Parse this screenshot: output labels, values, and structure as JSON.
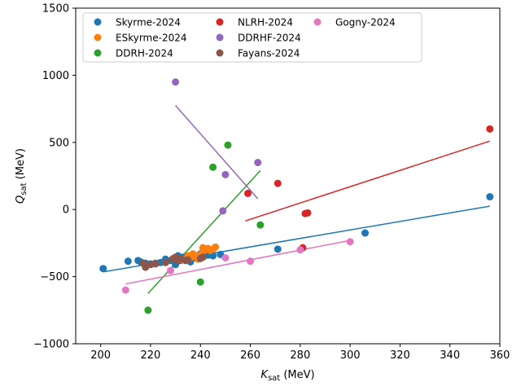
{
  "chart_data": {
    "type": "scatter",
    "xlabel": "K_sat (MeV)",
    "ylabel": "Q_sat (MeV)",
    "xlim": [
      190,
      360
    ],
    "ylim": [
      -1000,
      1500
    ],
    "xticks": [
      "200",
      "220",
      "240",
      "260",
      "280",
      "300",
      "320",
      "340",
      "360"
    ],
    "yticks": [
      "−1000",
      "−500",
      "0",
      "500",
      "1000",
      "1500"
    ],
    "legend_position": "top-left",
    "legend_columns": 3,
    "grid": false,
    "series": [
      {
        "name": "Skyrme-2024",
        "color": "#1f77b4",
        "points": [
          [
            201,
            -440
          ],
          [
            211,
            -385
          ],
          [
            215,
            -380
          ],
          [
            216,
            -390
          ],
          [
            218,
            -400
          ],
          [
            220,
            -405
          ],
          [
            222,
            -400
          ],
          [
            224,
            -395
          ],
          [
            226,
            -370
          ],
          [
            228,
            -380
          ],
          [
            230,
            -410
          ],
          [
            230,
            -370
          ],
          [
            231,
            -345
          ],
          [
            232,
            -380
          ],
          [
            233,
            -355
          ],
          [
            235,
            -350
          ],
          [
            236,
            -390
          ],
          [
            237,
            -360
          ],
          [
            238,
            -360
          ],
          [
            240,
            -330
          ],
          [
            241,
            -350
          ],
          [
            243,
            -340
          ],
          [
            245,
            -345
          ],
          [
            248,
            -335
          ],
          [
            271,
            -295
          ],
          [
            306,
            -175
          ],
          [
            356,
            95
          ]
        ],
        "fit": [
          [
            201,
            -465
          ],
          [
            356,
            25
          ]
        ]
      },
      {
        "name": "ESkyrme-2024",
        "color": "#ff7f0e",
        "points": [
          [
            229,
            -365
          ],
          [
            233,
            -375
          ],
          [
            235,
            -345
          ],
          [
            236,
            -360
          ],
          [
            237,
            -330
          ],
          [
            238,
            -350
          ],
          [
            239,
            -370
          ],
          [
            240,
            -340
          ],
          [
            241,
            -310
          ],
          [
            241,
            -285
          ],
          [
            242,
            -300
          ],
          [
            243,
            -290
          ],
          [
            244,
            -305
          ],
          [
            245,
            -295
          ],
          [
            246,
            -280
          ]
        ],
        "fit": [
          [
            229,
            -385
          ],
          [
            247,
            -275
          ]
        ]
      },
      {
        "name": "DDRH-2024",
        "color": "#2ca02c",
        "points": [
          [
            219,
            -750
          ],
          [
            240,
            -540
          ],
          [
            245,
            315
          ],
          [
            251,
            480
          ],
          [
            264,
            -115
          ]
        ],
        "fit": [
          [
            219,
            -625
          ],
          [
            264,
            290
          ]
        ]
      },
      {
        "name": "NLRH-2024",
        "color": "#d62728",
        "points": [
          [
            259,
            120
          ],
          [
            271,
            195
          ],
          [
            281,
            -285
          ],
          [
            282,
            -30
          ],
          [
            283,
            -25
          ],
          [
            356,
            600
          ]
        ],
        "fit": [
          [
            258,
            -85
          ],
          [
            356,
            510
          ]
        ]
      },
      {
        "name": "DDRHF-2024",
        "color": "#9467bd",
        "points": [
          [
            230,
            950
          ],
          [
            249,
            -10
          ],
          [
            250,
            260
          ],
          [
            263,
            350
          ]
        ],
        "fit": [
          [
            230,
            775
          ],
          [
            263,
            80
          ]
        ]
      },
      {
        "name": "Fayans-2024",
        "color": "#8c564b",
        "points": [
          [
            217,
            -400
          ],
          [
            218,
            -430
          ],
          [
            220,
            -410
          ],
          [
            222,
            -405
          ],
          [
            226,
            -395
          ],
          [
            229,
            -370
          ],
          [
            230,
            -355
          ],
          [
            231,
            -380
          ],
          [
            232,
            -365
          ],
          [
            234,
            -380
          ],
          [
            235,
            -375
          ],
          [
            240,
            -365
          ],
          [
            241,
            -355
          ]
        ],
        "fit": null
      },
      {
        "name": "Gogny-2024",
        "color": "#e377c2",
        "points": [
          [
            210,
            -600
          ],
          [
            228,
            -455
          ],
          [
            250,
            -360
          ],
          [
            260,
            -385
          ],
          [
            280,
            -300
          ],
          [
            300,
            -240
          ]
        ],
        "fit": [
          [
            210,
            -555
          ],
          [
            300,
            -230
          ]
        ]
      }
    ]
  }
}
